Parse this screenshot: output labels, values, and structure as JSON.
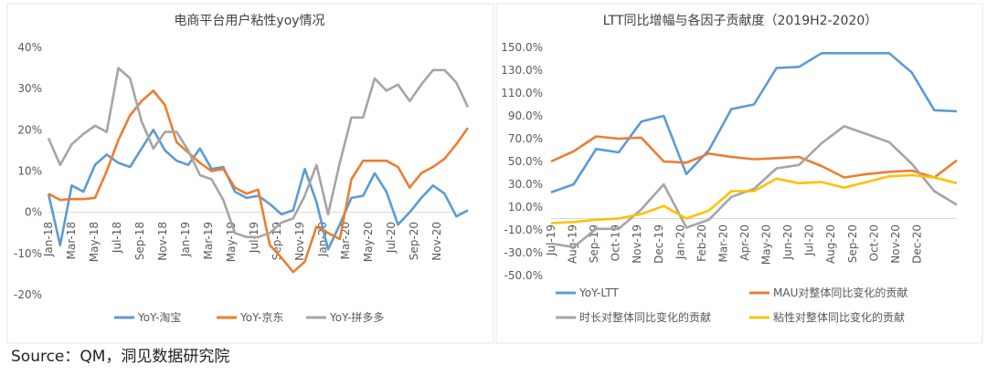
{
  "source": "Source：QM，洞见数据研究院",
  "colors": {
    "blue": "#5B9BD5",
    "orange": "#ED7D31",
    "gray": "#A5A5A5",
    "yellow": "#FFC000"
  },
  "chart_data": [
    {
      "type": "line",
      "title": "电商平台用户粘性yoy情况",
      "ylim": [
        -20,
        40
      ],
      "yticks": [
        "40%",
        "30%",
        "20%",
        "10%",
        "0%",
        "-10%",
        "-20%"
      ],
      "ytick_values": [
        40,
        30,
        20,
        10,
        0,
        -10,
        -20
      ],
      "xtick_labels": [
        "Jan-18",
        "Mar-18",
        "May-18",
        "Jul-18",
        "Sep-18",
        "Nov-18",
        "Jan-19",
        "Mar-19",
        "May-19",
        "Jul-19",
        "Sep-19",
        "Nov-19",
        "Jan-20",
        "Mar-20",
        "May-20",
        "Jul-20",
        "Sep-20",
        "Nov-20"
      ],
      "legend_position": "bottom",
      "grid": false,
      "series": [
        {
          "name": "YoY-淘宝",
          "color": "#5B9BD5",
          "values": [
            4.5,
            -8,
            6.5,
            5,
            11.5,
            14,
            12,
            11,
            15.5,
            20,
            15,
            12.5,
            11.5,
            15.5,
            10.5,
            11,
            5,
            3.5,
            4,
            2,
            -0.5,
            0.5,
            10.5,
            2.5,
            -9,
            -3,
            3.5,
            4,
            9.5,
            5,
            -3,
            0,
            3.5,
            6.5,
            4.5,
            -1,
            0.5
          ]
        },
        {
          "name": "YoY-京东",
          "color": "#ED7D31",
          "values": [
            4.5,
            3,
            3.2,
            3.2,
            3.5,
            10,
            17.5,
            23.5,
            27,
            29.5,
            26,
            17,
            14.5,
            12,
            10,
            10.5,
            6,
            4.5,
            5.5,
            -8,
            -11,
            -14.5,
            -12,
            -3.5,
            -5,
            -6.5,
            8,
            12.5,
            12.5,
            12.5,
            11,
            6,
            9.5,
            11,
            13,
            16.5,
            20.5
          ]
        },
        {
          "name": "YoY-拼多多",
          "color": "#A5A5A5",
          "values": [
            18,
            11.5,
            16.5,
            19,
            21,
            19.5,
            35,
            32.5,
            22,
            15.5,
            19.5,
            19.5,
            15,
            9,
            8,
            3,
            -5,
            -6,
            -6,
            -5,
            -2.5,
            -1.5,
            4,
            11.5,
            -0.5,
            12,
            23,
            23,
            32.5,
            29.5,
            31,
            27,
            31,
            34.5,
            34.5,
            31.5,
            25.5
          ]
        }
      ]
    },
    {
      "type": "line",
      "title": "LTT同比增幅与各因子贡献度（2019H2-2020）",
      "ylim": [
        -50,
        150
      ],
      "yticks": [
        "150.0%",
        "130.0%",
        "110.0%",
        "90.0%",
        "70.0%",
        "50.0%",
        "30.0%",
        "10.0%",
        "-10.0%",
        "-30.0%",
        "-50.0%"
      ],
      "ytick_values": [
        150,
        130,
        110,
        90,
        70,
        50,
        30,
        10,
        -10,
        -30,
        -50
      ],
      "xtick_labels": [
        "Jul-19",
        "Aug-19",
        "Sep-19",
        "Oct-19",
        "Nov-19",
        "Dec-19",
        "Jan-20",
        "Feb-20",
        "Mar-20",
        "Apr-20",
        "May-20",
        "Jun-20",
        "Jul-20",
        "Aug-20",
        "Sep-20",
        "Oct-20",
        "Nov-20",
        "Dec-20"
      ],
      "legend_position": "bottom",
      "grid": false,
      "series": [
        {
          "name": "YoY-LTT",
          "color": "#5B9BD5",
          "values": [
            23,
            30,
            61,
            58,
            85,
            90,
            39,
            60,
            96,
            100,
            132,
            133,
            145,
            145,
            145,
            145,
            128,
            95,
            94
          ]
        },
        {
          "name": "MAU对整体同比变化的贡献",
          "color": "#ED7D31",
          "values": [
            50,
            59,
            72,
            70,
            71,
            50,
            49,
            57,
            54,
            52,
            53,
            54,
            46,
            36,
            39,
            41,
            42,
            36,
            51
          ]
        },
        {
          "name": "时长对整体同比变化的贡献",
          "color": "#A5A5A5",
          "values": [
            -22,
            -25,
            -9,
            -9,
            8,
            30,
            -8,
            -1,
            19,
            26,
            44,
            47,
            66,
            81,
            74,
            67,
            48,
            24,
            12
          ]
        },
        {
          "name": "粘性对整体同比变化的贡献",
          "color": "#FFC000",
          "values": [
            -4,
            -3,
            -1,
            0,
            4,
            11,
            0,
            7,
            24,
            24,
            35,
            31,
            32,
            27,
            32,
            37,
            38,
            36,
            31
          ]
        }
      ]
    }
  ]
}
